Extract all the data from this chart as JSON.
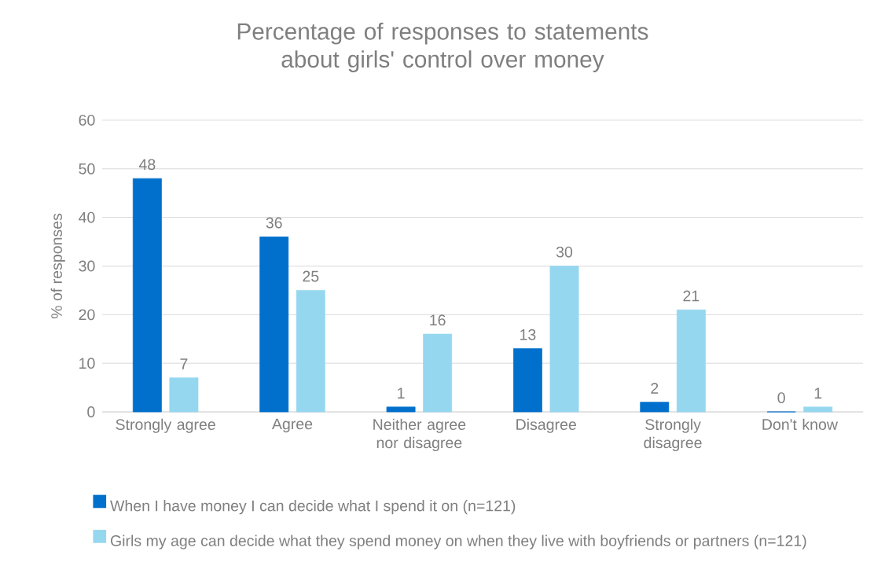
{
  "chart_data": {
    "type": "bar",
    "title": "Percentage of responses to statements about girls' control over money",
    "ylabel": "% of responses",
    "categories": [
      "Strongly agree",
      "Agree",
      "Neither agree nor disagree",
      "Disagree",
      "Strongly disagree",
      "Don't know"
    ],
    "series": [
      {
        "name": "When I have money I can decide what I spend it on (n=121)",
        "color": "#0070cc",
        "values": [
          48,
          36,
          1,
          13,
          2,
          0
        ]
      },
      {
        "name": "Girls my age can decide what they spend money on when they live with boyfriends or partners (n=121)",
        "color": "#96d7f0",
        "values": [
          7,
          25,
          16,
          30,
          21,
          1
        ]
      }
    ],
    "ylim": [
      0,
      60
    ],
    "yticks": [
      0,
      10,
      20,
      30,
      40,
      50,
      60
    ],
    "grid": "y",
    "legend": "bottom",
    "data_labels": true
  }
}
